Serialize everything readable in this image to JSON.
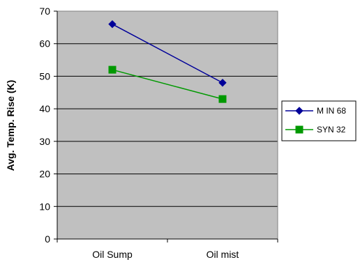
{
  "chart_data": {
    "type": "line",
    "categories": [
      "Oil Sump",
      "Oil mist"
    ],
    "series": [
      {
        "name": "M IN 68",
        "values": [
          66,
          48
        ],
        "color": "#000099",
        "marker": "diamond"
      },
      {
        "name": "SYN 32",
        "values": [
          52,
          43
        ],
        "color": "#009900",
        "marker": "square"
      }
    ],
    "title": "",
    "xlabel": "",
    "ylabel": "Avg. Temp. Rise (K)",
    "ylim": [
      0,
      70
    ],
    "yticks": [
      0,
      10,
      20,
      30,
      40,
      50,
      60,
      70
    ],
    "grid": true,
    "plot_background": "#c0c0c0",
    "legend_position": "right"
  }
}
